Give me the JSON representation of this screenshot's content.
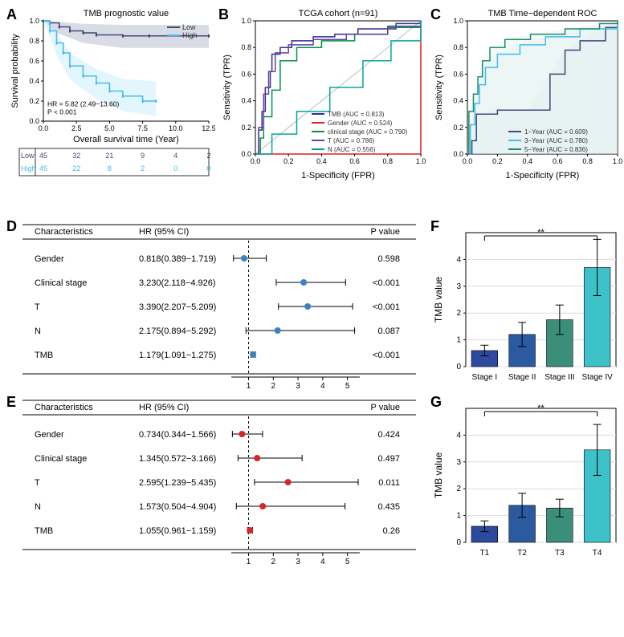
{
  "panelA": {
    "title": "TMB prognostic value",
    "xlabel": "Overall survival time  (Year)",
    "ylabel": "Survival probability",
    "xlim": [
      0,
      12.5
    ],
    "xtick_step": 2.5,
    "ylim": [
      0,
      1.0
    ],
    "ytick_step": 0.2,
    "hr_text": "HR = 5.82 (2.49−13.60)",
    "p_text": "P < 0.001",
    "legend": [
      {
        "label": "Low",
        "color": "#404878"
      },
      {
        "label": "High",
        "color": "#43bcee"
      }
    ],
    "km_low": {
      "color": "#404878",
      "ci_color": "#b6b9cc",
      "points": [
        [
          0,
          1.0
        ],
        [
          0.5,
          0.98
        ],
        [
          1.2,
          0.94
        ],
        [
          2.0,
          0.9
        ],
        [
          3.0,
          0.88
        ],
        [
          4.0,
          0.86
        ],
        [
          6.0,
          0.85
        ],
        [
          8.0,
          0.85
        ],
        [
          12.5,
          0.85
        ]
      ],
      "ci_upper": [
        [
          0,
          1.0
        ],
        [
          1.0,
          0.99
        ],
        [
          3.0,
          0.97
        ],
        [
          6.0,
          0.96
        ],
        [
          12.5,
          0.96
        ]
      ],
      "ci_lower": [
        [
          0,
          1.0
        ],
        [
          1.0,
          0.88
        ],
        [
          3.0,
          0.78
        ],
        [
          6.0,
          0.73
        ],
        [
          12.5,
          0.73
        ]
      ]
    },
    "km_high": {
      "color": "#43bcee",
      "ci_color": "#c9eefb",
      "points": [
        [
          0,
          1.0
        ],
        [
          0.5,
          0.9
        ],
        [
          1.0,
          0.78
        ],
        [
          1.5,
          0.68
        ],
        [
          2.0,
          0.55
        ],
        [
          3.0,
          0.45
        ],
        [
          4.0,
          0.38
        ],
        [
          5.0,
          0.3
        ],
        [
          6.0,
          0.25
        ],
        [
          7.5,
          0.2
        ],
        [
          8.5,
          0.2
        ]
      ],
      "ci_upper": [
        [
          0,
          1.0
        ],
        [
          1.0,
          0.88
        ],
        [
          2.0,
          0.68
        ],
        [
          4.0,
          0.52
        ],
        [
          6.0,
          0.42
        ],
        [
          8.5,
          0.4
        ]
      ],
      "ci_lower": [
        [
          0,
          1.0
        ],
        [
          1.0,
          0.66
        ],
        [
          2.0,
          0.42
        ],
        [
          4.0,
          0.22
        ],
        [
          6.0,
          0.1
        ],
        [
          8.5,
          0.05
        ]
      ]
    },
    "risk_table": {
      "rows": [
        {
          "label": "Low",
          "color": "#404878",
          "vals": [
            45,
            32,
            21,
            9,
            4,
            2
          ]
        },
        {
          "label": "High",
          "color": "#43bcee",
          "vals": [
            45,
            22,
            8,
            2,
            0,
            0
          ]
        }
      ],
      "tick_x": [
        0,
        2.5,
        5,
        7.5,
        10,
        12.5
      ]
    }
  },
  "panelB": {
    "title": "TCGA cohort (n=91)",
    "xlabel": "1-Specificity (FPR)",
    "ylabel": "Sensitivity (TPR)",
    "xlim": [
      0,
      1
    ],
    "ylim": [
      0,
      1
    ],
    "xticks": [
      0.0,
      0.2,
      0.4,
      0.6,
      0.8,
      1.0
    ],
    "yticks": [
      0.0,
      0.2,
      0.4,
      0.6,
      0.8,
      1.0
    ],
    "diag_color": "#bdbdbd",
    "curves": [
      {
        "label": "TMB (AUC = 0.813)",
        "color": "#2e3192",
        "points": [
          [
            0,
            0
          ],
          [
            0.02,
            0.18
          ],
          [
            0.04,
            0.32
          ],
          [
            0.06,
            0.5
          ],
          [
            0.09,
            0.62
          ],
          [
            0.1,
            0.75
          ],
          [
            0.15,
            0.8
          ],
          [
            0.22,
            0.85
          ],
          [
            0.35,
            0.88
          ],
          [
            0.48,
            0.9
          ],
          [
            0.62,
            0.94
          ],
          [
            0.85,
            0.98
          ],
          [
            1,
            1
          ]
        ]
      },
      {
        "label": "Gender (AUC = 0.524)",
        "color": "#e11e26",
        "points": [
          [
            0,
            0
          ],
          [
            1,
            1
          ]
        ]
      },
      {
        "label": "clinical stage (AUC = 0.790)",
        "color": "#009247",
        "points": [
          [
            0,
            0
          ],
          [
            0.03,
            0.12
          ],
          [
            0.05,
            0.28
          ],
          [
            0.1,
            0.48
          ],
          [
            0.15,
            0.7
          ],
          [
            0.25,
            0.8
          ],
          [
            0.4,
            0.85
          ],
          [
            0.6,
            0.9
          ],
          [
            0.8,
            0.95
          ],
          [
            1,
            1
          ]
        ]
      },
      {
        "label": "T (AUC = 0.786)",
        "color": "#6b3fa0",
        "points": [
          [
            0,
            0
          ],
          [
            0.02,
            0.2
          ],
          [
            0.05,
            0.45
          ],
          [
            0.08,
            0.62
          ],
          [
            0.12,
            0.76
          ],
          [
            0.2,
            0.82
          ],
          [
            0.35,
            0.86
          ],
          [
            0.55,
            0.9
          ],
          [
            0.8,
            0.96
          ],
          [
            1,
            1
          ]
        ]
      },
      {
        "label": "N (AUC = 0.556)",
        "color": "#00a79d",
        "points": [
          [
            0,
            0
          ],
          [
            0.1,
            0.15
          ],
          [
            0.25,
            0.32
          ],
          [
            0.45,
            0.5
          ],
          [
            0.65,
            0.7
          ],
          [
            0.82,
            0.85
          ],
          [
            1,
            1
          ]
        ]
      }
    ]
  },
  "panelC": {
    "title": "TMB Time−dependent ROC",
    "xlabel": "1-Specificity (FPR)",
    "ylabel": "Sensitivity (TPR)",
    "xlim": [
      0,
      1
    ],
    "ylim": [
      0,
      1
    ],
    "xticks": [
      0.0,
      0.2,
      0.4,
      0.6,
      0.8,
      1.0
    ],
    "yticks": [
      0.0,
      0.2,
      0.4,
      0.6,
      0.8,
      1.0
    ],
    "curves": [
      {
        "label": "1−Year (AUC = 0.609)",
        "color": "#404878",
        "fill": "#e1e2ea",
        "points": [
          [
            0,
            0
          ],
          [
            0.03,
            0.1
          ],
          [
            0.06,
            0.3
          ],
          [
            0.2,
            0.33
          ],
          [
            0.4,
            0.33
          ],
          [
            0.55,
            0.6
          ],
          [
            0.65,
            0.78
          ],
          [
            0.75,
            0.85
          ],
          [
            0.92,
            0.95
          ],
          [
            1,
            1
          ]
        ]
      },
      {
        "label": "3−Year (AUC = 0.780)",
        "color": "#43bcee",
        "fill": "#d6f1fb",
        "points": [
          [
            0,
            0
          ],
          [
            0.02,
            0.22
          ],
          [
            0.05,
            0.38
          ],
          [
            0.08,
            0.52
          ],
          [
            0.12,
            0.65
          ],
          [
            0.2,
            0.75
          ],
          [
            0.35,
            0.82
          ],
          [
            0.52,
            0.88
          ],
          [
            0.75,
            0.94
          ],
          [
            1,
            1
          ]
        ]
      },
      {
        "label": "5−Year (AUC = 0.836)",
        "color": "#1f8a70",
        "fill": "#d0e9dd",
        "points": [
          [
            0,
            0
          ],
          [
            0.01,
            0.32
          ],
          [
            0.04,
            0.45
          ],
          [
            0.07,
            0.58
          ],
          [
            0.1,
            0.7
          ],
          [
            0.15,
            0.8
          ],
          [
            0.25,
            0.86
          ],
          [
            0.42,
            0.9
          ],
          [
            0.65,
            0.94
          ],
          [
            0.88,
            0.98
          ],
          [
            1,
            1
          ]
        ]
      }
    ]
  },
  "panelD": {
    "headers": [
      "Characteristics",
      "HR (95% CI)",
      "P value"
    ],
    "dot_color": "#3b82c4",
    "xlim": [
      0.3,
      5.5
    ],
    "xticks": [
      1,
      2,
      3,
      4,
      5
    ],
    "rows": [
      {
        "name": "Gender",
        "hr_text": "0.818(0.389−1.719)",
        "hr": 0.818,
        "lo": 0.389,
        "hi": 1.719,
        "p": "0.598"
      },
      {
        "name": "Clinical stage",
        "hr_text": "3.230(2.118−4.926)",
        "hr": 3.23,
        "lo": 2.118,
        "hi": 4.926,
        "p": "<0.001"
      },
      {
        "name": "T",
        "hr_text": "3.390(2.207−5.209)",
        "hr": 3.39,
        "lo": 2.207,
        "hi": 5.209,
        "p": "<0.001"
      },
      {
        "name": "N",
        "hr_text": "2.175(0.894−5.292)",
        "hr": 2.175,
        "lo": 0.894,
        "hi": 5.292,
        "p": "0.087"
      },
      {
        "name": "TMB",
        "hr_text": "1.179(1.091−1.275)",
        "hr": 1.179,
        "lo": 1.091,
        "hi": 1.275,
        "p": "<0.001"
      }
    ]
  },
  "panelE": {
    "headers": [
      "Characteristics",
      "HR (95% CI)",
      "P value"
    ],
    "dot_color": "#d62728",
    "xlim": [
      0.3,
      5.5
    ],
    "xticks": [
      1,
      2,
      3,
      4,
      5
    ],
    "rows": [
      {
        "name": "Gender",
        "hr_text": "0.734(0.344−1.566)",
        "hr": 0.734,
        "lo": 0.344,
        "hi": 1.566,
        "p": "0.424"
      },
      {
        "name": "Clinical stage",
        "hr_text": "1.345(0.572−3.166)",
        "hr": 1.345,
        "lo": 0.572,
        "hi": 3.166,
        "p": "0.497"
      },
      {
        "name": "T",
        "hr_text": "2.595(1.239−5.435)",
        "hr": 2.595,
        "lo": 1.239,
        "hi": 5.435,
        "p": "0.011"
      },
      {
        "name": "N",
        "hr_text": "1.573(0.504−4.904)",
        "hr": 1.573,
        "lo": 0.504,
        "hi": 4.904,
        "p": "0.435"
      },
      {
        "name": "TMB",
        "hr_text": "1.055(0.961−1.159)",
        "hr": 1.055,
        "lo": 0.961,
        "hi": 1.159,
        "p": "0.26"
      }
    ]
  },
  "panelF": {
    "ylabel": "TMB value",
    "sig_label": "**",
    "ylim": [
      0,
      5
    ],
    "yticks": [
      0,
      1,
      2,
      3,
      4
    ],
    "bars": [
      {
        "label": "Stage I",
        "val": 0.6,
        "err": 0.2,
        "color": "#2e4a9e"
      },
      {
        "label": "Stage II",
        "val": 1.2,
        "err": 0.45,
        "color": "#2c5aa0"
      },
      {
        "label": "Stage III",
        "val": 1.75,
        "err": 0.55,
        "color": "#3a8e7a"
      },
      {
        "label": "Stage IV",
        "val": 3.7,
        "err": 1.05,
        "color": "#3fc1c9"
      }
    ]
  },
  "panelG": {
    "ylabel": "TMB value",
    "sig_label": "**",
    "ylim": [
      0,
      5
    ],
    "yticks": [
      0,
      1,
      2,
      3,
      4
    ],
    "bars": [
      {
        "label": "T1",
        "val": 0.6,
        "err": 0.2,
        "color": "#2e4a9e"
      },
      {
        "label": "T2",
        "val": 1.38,
        "err": 0.45,
        "color": "#2c5aa0"
      },
      {
        "label": "T3",
        "val": 1.28,
        "err": 0.33,
        "color": "#3a8e7a"
      },
      {
        "label": "T4",
        "val": 3.45,
        "err": 0.95,
        "color": "#3fc1c9"
      }
    ]
  }
}
